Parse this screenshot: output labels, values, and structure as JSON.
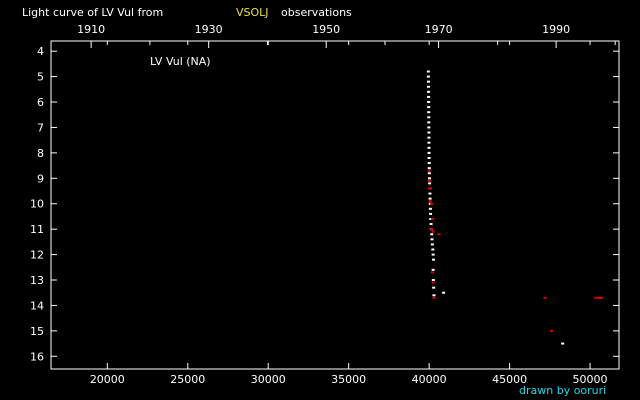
{
  "chart_data": {
    "type": "scatter",
    "title": {
      "prefix": "Light curve of LV Vul from",
      "source": "VSOLJ",
      "suffix": "observations"
    },
    "object_label": "LV Vul (NA)",
    "credit": "drawn by ooruri",
    "xlabel": "",
    "ylabel": "",
    "x_range": [
      16500,
      51800
    ],
    "y_range": [
      3.6,
      16.5
    ],
    "y_inverted": true,
    "x_ticks": [
      20000,
      25000,
      30000,
      35000,
      40000,
      45000,
      50000
    ],
    "y_ticks": [
      4,
      5,
      6,
      7,
      8,
      9,
      10,
      11,
      12,
      13,
      14,
      15,
      16
    ],
    "top_axis": {
      "label_years": [
        "1910",
        "1930",
        "1950",
        "1970",
        "1990"
      ],
      "label_jd": [
        18994,
        26299,
        33603,
        40588,
        47892
      ],
      "minor_jd": [
        22646,
        29951,
        37256,
        44258,
        51563
      ]
    },
    "colors": {
      "background": "#000000",
      "axis": "#ffffff",
      "visual": "#ffffff",
      "other": "#e00000",
      "source": "#e8e040",
      "credit": "#22d8e8"
    },
    "series": [
      {
        "name": "",
        "color": "#ffffff",
        "points": [
          [
            39950,
            4.8
          ],
          [
            39955,
            5.0
          ],
          [
            39960,
            5.2
          ],
          [
            39962,
            5.4
          ],
          [
            39965,
            5.6
          ],
          [
            39968,
            5.8
          ],
          [
            39970,
            6.0
          ],
          [
            39972,
            6.2
          ],
          [
            39975,
            6.4
          ],
          [
            39978,
            6.6
          ],
          [
            39980,
            6.8
          ],
          [
            39983,
            7.0
          ],
          [
            39985,
            7.2
          ],
          [
            39988,
            7.4
          ],
          [
            39990,
            7.6
          ],
          [
            39993,
            7.8
          ],
          [
            39995,
            8.0
          ],
          [
            40000,
            8.2
          ],
          [
            40005,
            8.4
          ],
          [
            40010,
            8.6
          ],
          [
            40015,
            8.8
          ],
          [
            40020,
            9.0
          ],
          [
            40030,
            9.2
          ],
          [
            40040,
            9.4
          ],
          [
            40050,
            9.6
          ],
          [
            40060,
            9.8
          ],
          [
            40070,
            10.0
          ],
          [
            40080,
            10.2
          ],
          [
            40090,
            10.4
          ],
          [
            40100,
            10.6
          ],
          [
            40120,
            10.8
          ],
          [
            40140,
            11.0
          ],
          [
            40160,
            11.2
          ],
          [
            40180,
            11.4
          ],
          [
            40200,
            11.6
          ],
          [
            40230,
            11.8
          ],
          [
            40250,
            12.0
          ],
          [
            40270,
            12.2
          ],
          [
            40250,
            12.6
          ],
          [
            40260,
            13.0
          ],
          [
            40280,
            13.3
          ],
          [
            40300,
            13.6
          ],
          [
            40900,
            13.5
          ],
          [
            48300,
            15.5
          ]
        ]
      },
      {
        "name": "",
        "color": "#e00000",
        "points": [
          [
            40000,
            8.7
          ],
          [
            40010,
            9.1
          ],
          [
            40020,
            9.4
          ],
          [
            40060,
            9.9
          ],
          [
            40150,
            10.0
          ],
          [
            40200,
            10.6
          ],
          [
            40150,
            11.0
          ],
          [
            40250,
            11.1
          ],
          [
            40600,
            11.2
          ],
          [
            40200,
            12.7
          ],
          [
            40250,
            13.1
          ],
          [
            40300,
            13.7
          ],
          [
            47200,
            13.7
          ],
          [
            47600,
            15.0
          ],
          [
            50350,
            13.7
          ],
          [
            50550,
            13.7
          ],
          [
            50700,
            13.7
          ]
        ]
      }
    ]
  }
}
